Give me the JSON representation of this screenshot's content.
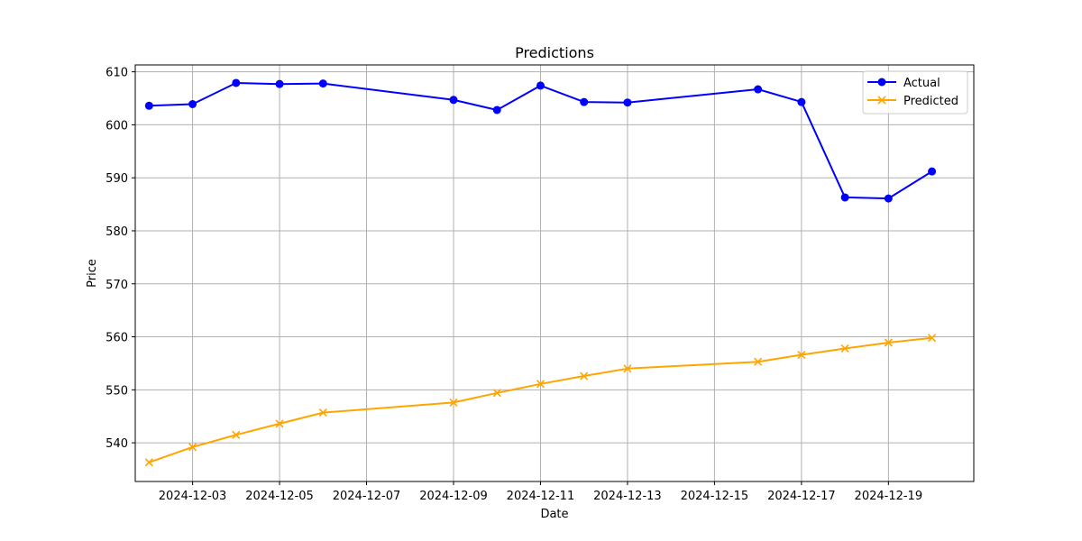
{
  "chart_data": {
    "type": "line",
    "title": "Predictions",
    "xlabel": "Date",
    "ylabel": "Price",
    "x": [
      "2024-12-02",
      "2024-12-03",
      "2024-12-04",
      "2024-12-05",
      "2024-12-06",
      "2024-12-09",
      "2024-12-10",
      "2024-12-11",
      "2024-12-12",
      "2024-12-13",
      "2024-12-16",
      "2024-12-17",
      "2024-12-18",
      "2024-12-19",
      "2024-12-20"
    ],
    "series": [
      {
        "name": "Actual",
        "color": "#0000ff",
        "marker": "circle",
        "values": [
          603.6,
          603.9,
          607.9,
          607.7,
          607.8,
          604.7,
          602.8,
          607.4,
          604.3,
          604.2,
          606.7,
          604.3,
          586.3,
          586.1,
          591.2
        ]
      },
      {
        "name": "Predicted",
        "color": "#ffa500",
        "marker": "x",
        "values": [
          536.3,
          539.2,
          541.5,
          543.6,
          545.7,
          547.6,
          549.4,
          551.1,
          552.6,
          554.0,
          555.3,
          556.6,
          557.8,
          558.9,
          559.8
        ]
      }
    ],
    "xticks": [
      "2024-12-03",
      "2024-12-05",
      "2024-12-07",
      "2024-12-09",
      "2024-12-11",
      "2024-12-13",
      "2024-12-15",
      "2024-12-17",
      "2024-12-19"
    ],
    "yticks": [
      540,
      550,
      560,
      570,
      580,
      590,
      600,
      610
    ],
    "xlim": [
      "2024-12-01T16:22",
      "2024-12-20T23:06"
    ],
    "ylim": [
      532.7,
      611.3
    ],
    "grid": true,
    "legend": "upper right"
  }
}
